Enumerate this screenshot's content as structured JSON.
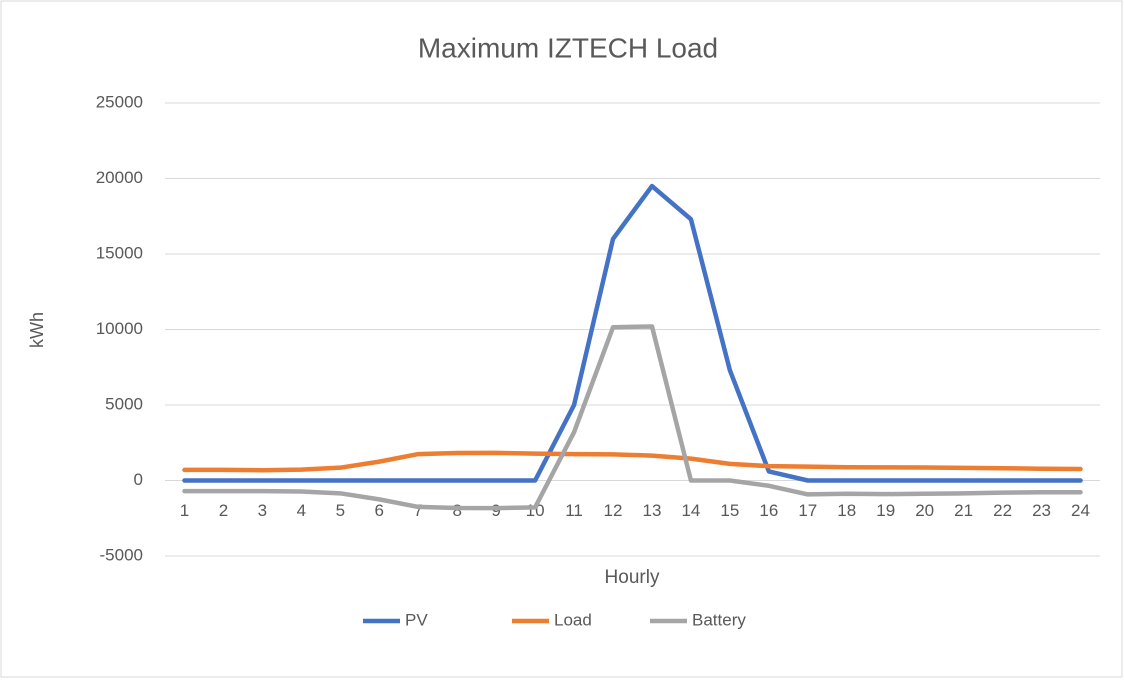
{
  "chart_data": {
    "type": "line",
    "title": "Maximum IZTECH Load",
    "xlabel": "Hourly",
    "ylabel": "kWh",
    "categories": [
      "1",
      "2",
      "3",
      "4",
      "5",
      "6",
      "7",
      "8",
      "9",
      "10",
      "11",
      "12",
      "13",
      "14",
      "15",
      "16",
      "17",
      "18",
      "19",
      "20",
      "21",
      "22",
      "23",
      "24"
    ],
    "series": [
      {
        "name": "PV",
        "color": "#4472c4",
        "values": [
          0,
          0,
          0,
          0,
          0,
          0,
          0,
          0,
          0,
          0,
          5000,
          16000,
          19500,
          17300,
          7300,
          600,
          0,
          0,
          0,
          0,
          0,
          0,
          0,
          0
        ]
      },
      {
        "name": "Load",
        "color": "#ed7d31",
        "values": [
          700,
          700,
          680,
          720,
          850,
          1250,
          1750,
          1820,
          1830,
          1780,
          1750,
          1730,
          1650,
          1450,
          1100,
          950,
          920,
          880,
          870,
          860,
          840,
          810,
          780,
          760
        ]
      },
      {
        "name": "Battery",
        "color": "#a5a5a5",
        "values": [
          -700,
          -700,
          -700,
          -730,
          -850,
          -1250,
          -1750,
          -1820,
          -1830,
          -1780,
          3200,
          10150,
          10200,
          0,
          0,
          -350,
          -920,
          -880,
          -900,
          -880,
          -850,
          -800,
          -780,
          -780
        ]
      }
    ],
    "ylim": [
      -5000,
      25000
    ],
    "yticks": [
      -5000,
      0,
      5000,
      10000,
      15000,
      20000,
      25000
    ],
    "grid": true,
    "legend": "bottom"
  }
}
